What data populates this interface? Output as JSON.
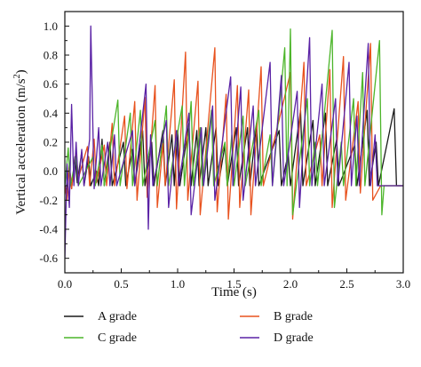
{
  "chart_data": {
    "type": "line",
    "xlabel": "Time (s)",
    "ylabel": "Vertical acceleration (m/s",
    "ylabel_sup": "2",
    "ylabel_close": ")",
    "xlim": [
      0.0,
      3.0
    ],
    "ylim": [
      -0.7,
      1.1
    ],
    "xticks": [
      "0.0",
      "0.5",
      "1.0",
      "1.5",
      "2.0",
      "2.5",
      "3.0"
    ],
    "yticks": [
      "-0.6",
      "-0.4",
      "-0.2",
      "0.0",
      "0.2",
      "0.4",
      "0.6",
      "0.8",
      "1.0"
    ],
    "grid": false,
    "legend_position": "bottom",
    "series": [
      {
        "name": "A grade",
        "color": "#1a1a1a",
        "points": [
          [
            0.0,
            -0.1
          ],
          [
            0.02,
            -0.15
          ],
          [
            0.04,
            0.04
          ],
          [
            0.06,
            -0.12
          ],
          [
            0.09,
            0.1
          ],
          [
            0.11,
            -0.08
          ],
          [
            0.15,
            0.13
          ],
          [
            0.17,
            -0.1
          ],
          [
            0.21,
            0.1
          ],
          [
            0.23,
            -0.1
          ],
          [
            0.28,
            0.0
          ],
          [
            0.3,
            -0.1
          ],
          [
            0.33,
            0.22
          ],
          [
            0.35,
            -0.1
          ],
          [
            0.4,
            0.2
          ],
          [
            0.42,
            -0.1
          ],
          [
            0.52,
            0.2
          ],
          [
            0.54,
            -0.1
          ],
          [
            0.6,
            0.15
          ],
          [
            0.62,
            -0.1
          ],
          [
            0.69,
            0.28
          ],
          [
            0.71,
            -0.1
          ],
          [
            0.77,
            0.2
          ],
          [
            0.79,
            -0.1
          ],
          [
            0.87,
            0.28
          ],
          [
            0.89,
            -0.1
          ],
          [
            0.95,
            0.25
          ],
          [
            0.97,
            -0.1
          ],
          [
            1.0,
            0.28
          ],
          [
            1.02,
            -0.1
          ],
          [
            1.1,
            0.33
          ],
          [
            1.12,
            -0.1
          ],
          [
            1.17,
            0.28
          ],
          [
            1.19,
            -0.1
          ],
          [
            1.25,
            0.3
          ],
          [
            1.27,
            -0.1
          ],
          [
            1.34,
            0.3
          ],
          [
            1.36,
            -0.1
          ],
          [
            1.42,
            0.18
          ],
          [
            1.44,
            -0.1
          ],
          [
            1.52,
            0.3
          ],
          [
            1.54,
            -0.1
          ],
          [
            1.62,
            0.3
          ],
          [
            1.64,
            -0.1
          ],
          [
            1.7,
            0.33
          ],
          [
            1.72,
            -0.1
          ],
          [
            1.9,
            0.28
          ],
          [
            1.92,
            -0.1
          ],
          [
            1.98,
            0.12
          ],
          [
            2.0,
            -0.1
          ],
          [
            2.09,
            0.42
          ],
          [
            2.11,
            -0.1
          ],
          [
            2.2,
            0.35
          ],
          [
            2.22,
            -0.1
          ],
          [
            2.31,
            0.4
          ],
          [
            2.33,
            -0.1
          ],
          [
            2.41,
            0.22
          ],
          [
            2.43,
            -0.1
          ],
          [
            2.57,
            0.18
          ],
          [
            2.59,
            -0.1
          ],
          [
            2.68,
            0.42
          ],
          [
            2.7,
            -0.1
          ],
          [
            2.76,
            0.2
          ],
          [
            2.78,
            -0.1
          ],
          [
            2.92,
            0.43
          ],
          [
            2.94,
            -0.1
          ],
          [
            3.0,
            -0.1
          ]
        ]
      },
      {
        "name": "B grade",
        "color": "#e8521e",
        "points": [
          [
            0.0,
            -0.1
          ],
          [
            0.02,
            -0.2
          ],
          [
            0.04,
            0.04
          ],
          [
            0.06,
            -0.12
          ],
          [
            0.1,
            0.13
          ],
          [
            0.12,
            -0.05
          ],
          [
            0.2,
            0.17
          ],
          [
            0.22,
            -0.1
          ],
          [
            0.26,
            0.22
          ],
          [
            0.28,
            -0.08
          ],
          [
            0.35,
            0.18
          ],
          [
            0.37,
            -0.1
          ],
          [
            0.42,
            0.33
          ],
          [
            0.44,
            -0.1
          ],
          [
            0.53,
            0.38
          ],
          [
            0.55,
            -0.12
          ],
          [
            0.62,
            0.48
          ],
          [
            0.64,
            -0.2
          ],
          [
            0.71,
            0.51
          ],
          [
            0.73,
            -0.18
          ],
          [
            0.8,
            0.59
          ],
          [
            0.82,
            -0.25
          ],
          [
            0.87,
            0.19
          ],
          [
            0.89,
            -0.1
          ],
          [
            0.97,
            0.63
          ],
          [
            0.99,
            -0.26
          ],
          [
            1.07,
            0.82
          ],
          [
            1.09,
            -0.2
          ],
          [
            1.18,
            0.62
          ],
          [
            1.2,
            -0.3
          ],
          [
            1.33,
            0.85
          ],
          [
            1.35,
            -0.28
          ],
          [
            1.43,
            0.53
          ],
          [
            1.45,
            -0.33
          ],
          [
            1.53,
            0.59
          ],
          [
            1.55,
            -0.25
          ],
          [
            1.63,
            0.56
          ],
          [
            1.65,
            -0.3
          ],
          [
            1.74,
            0.72
          ],
          [
            1.76,
            -0.1
          ],
          [
            2.0,
            0.68
          ],
          [
            2.02,
            -0.33
          ],
          [
            2.12,
            0.75
          ],
          [
            2.14,
            -0.1
          ],
          [
            2.26,
            0.25
          ],
          [
            2.28,
            -0.1
          ],
          [
            2.35,
            0.7
          ],
          [
            2.37,
            -0.25
          ],
          [
            2.47,
            0.79
          ],
          [
            2.49,
            -0.2
          ],
          [
            2.6,
            0.48
          ],
          [
            2.62,
            -0.15
          ],
          [
            2.71,
            0.88
          ],
          [
            2.73,
            -0.2
          ],
          [
            2.8,
            -0.1
          ],
          [
            3.0,
            -0.1
          ]
        ]
      },
      {
        "name": "C grade",
        "color": "#4cb52a",
        "points": [
          [
            0.0,
            -0.1
          ],
          [
            0.03,
            0.16
          ],
          [
            0.05,
            -0.1
          ],
          [
            0.1,
            0.1
          ],
          [
            0.12,
            -0.1
          ],
          [
            0.25,
            0.1
          ],
          [
            0.27,
            -0.1
          ],
          [
            0.33,
            0.18
          ],
          [
            0.35,
            -0.1
          ],
          [
            0.47,
            0.49
          ],
          [
            0.49,
            -0.1
          ],
          [
            0.58,
            0.4
          ],
          [
            0.6,
            -0.1
          ],
          [
            0.67,
            0.42
          ],
          [
            0.69,
            -0.1
          ],
          [
            0.8,
            0.35
          ],
          [
            0.82,
            -0.1
          ],
          [
            0.9,
            0.45
          ],
          [
            0.92,
            -0.1
          ],
          [
            1.04,
            0.45
          ],
          [
            1.06,
            -0.1
          ],
          [
            1.12,
            0.48
          ],
          [
            1.14,
            -0.1
          ],
          [
            1.2,
            0.3
          ],
          [
            1.22,
            -0.1
          ],
          [
            1.3,
            0.42
          ],
          [
            1.32,
            -0.1
          ],
          [
            1.42,
            0.2
          ],
          [
            1.44,
            -0.1
          ],
          [
            1.48,
            0.25
          ],
          [
            1.5,
            -0.1
          ],
          [
            1.58,
            0.38
          ],
          [
            1.6,
            -0.1
          ],
          [
            1.72,
            0.42
          ],
          [
            1.74,
            -0.1
          ],
          [
            1.82,
            0.25
          ],
          [
            1.84,
            -0.1
          ],
          [
            1.95,
            0.85
          ],
          [
            1.97,
            -0.1
          ],
          [
            2.0,
            0.98
          ],
          [
            2.02,
            -0.3
          ],
          [
            2.15,
            0.5
          ],
          [
            2.17,
            -0.1
          ],
          [
            2.22,
            0.2
          ],
          [
            2.24,
            -0.1
          ],
          [
            2.37,
            0.97
          ],
          [
            2.39,
            -0.25
          ],
          [
            2.45,
            0.2
          ],
          [
            2.47,
            -0.1
          ],
          [
            2.56,
            0.5
          ],
          [
            2.58,
            -0.1
          ],
          [
            2.64,
            0.68
          ],
          [
            2.66,
            -0.1
          ],
          [
            2.79,
            0.9
          ],
          [
            2.81,
            -0.3
          ],
          [
            2.83,
            -0.1
          ],
          [
            3.0,
            -0.1
          ]
        ]
      },
      {
        "name": "D grade",
        "color": "#5a22a5",
        "points": [
          [
            0.0,
            -0.6
          ],
          [
            0.02,
            0.05
          ],
          [
            0.04,
            -0.25
          ],
          [
            0.06,
            0.46
          ],
          [
            0.08,
            -0.1
          ],
          [
            0.1,
            0.2
          ],
          [
            0.12,
            -0.1
          ],
          [
            0.15,
            0.15
          ],
          [
            0.17,
            -0.1
          ],
          [
            0.22,
            0.22
          ],
          [
            0.23,
            1.0
          ],
          [
            0.26,
            -0.12
          ],
          [
            0.3,
            0.3
          ],
          [
            0.32,
            -0.1
          ],
          [
            0.38,
            0.2
          ],
          [
            0.4,
            -0.1
          ],
          [
            0.44,
            0.25
          ],
          [
            0.46,
            -0.1
          ],
          [
            0.6,
            0.28
          ],
          [
            0.62,
            -0.1
          ],
          [
            0.72,
            0.6
          ],
          [
            0.74,
            -0.4
          ],
          [
            0.76,
            0.25
          ],
          [
            0.78,
            -0.1
          ],
          [
            0.9,
            0.35
          ],
          [
            0.92,
            -0.25
          ],
          [
            0.99,
            0.28
          ],
          [
            1.01,
            -0.1
          ],
          [
            1.1,
            0.4
          ],
          [
            1.12,
            -0.3
          ],
          [
            1.21,
            0.3
          ],
          [
            1.23,
            -0.1
          ],
          [
            1.31,
            0.45
          ],
          [
            1.33,
            -0.2
          ],
          [
            1.47,
            0.65
          ],
          [
            1.49,
            -0.1
          ],
          [
            1.56,
            0.58
          ],
          [
            1.58,
            -0.2
          ],
          [
            1.67,
            0.45
          ],
          [
            1.69,
            -0.1
          ],
          [
            1.82,
            0.75
          ],
          [
            1.84,
            -0.1
          ],
          [
            1.92,
            0.66
          ],
          [
            1.94,
            -0.1
          ],
          [
            2.06,
            0.55
          ],
          [
            2.08,
            -0.25
          ],
          [
            2.17,
            0.92
          ],
          [
            2.19,
            -0.1
          ],
          [
            2.28,
            0.6
          ],
          [
            2.3,
            -0.1
          ],
          [
            2.4,
            0.5
          ],
          [
            2.42,
            -0.1
          ],
          [
            2.52,
            0.75
          ],
          [
            2.54,
            -0.1
          ],
          [
            2.59,
            0.38
          ],
          [
            2.61,
            -0.1
          ],
          [
            2.69,
            0.88
          ],
          [
            2.71,
            -0.1
          ],
          [
            2.75,
            0.25
          ],
          [
            2.77,
            -0.1
          ],
          [
            3.0,
            -0.1
          ]
        ]
      }
    ]
  }
}
